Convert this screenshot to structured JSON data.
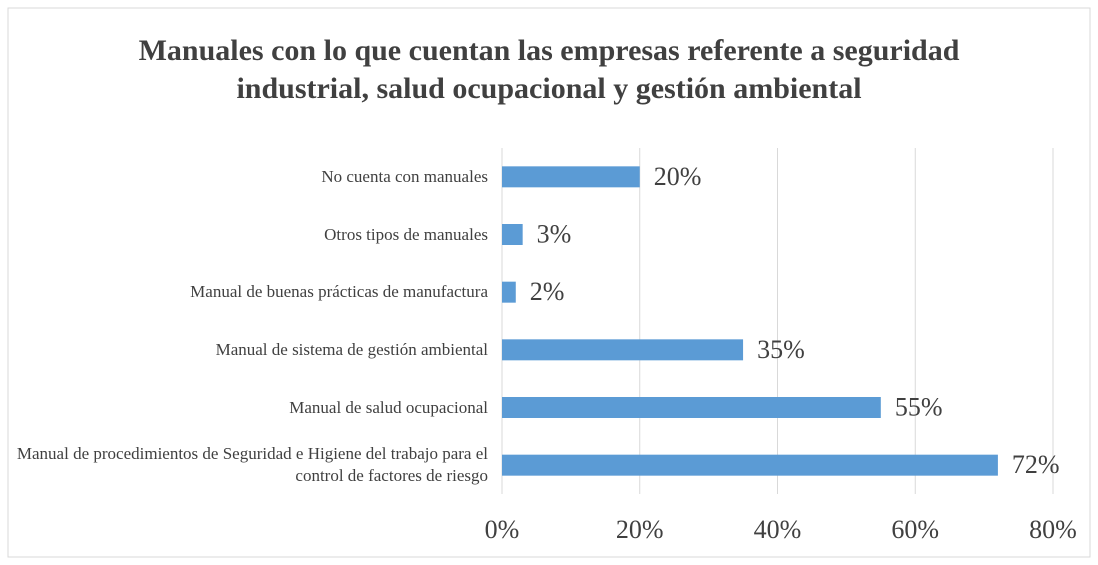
{
  "chart_data": {
    "type": "bar",
    "orientation": "horizontal",
    "title": "Manuales con lo que cuentan las empresas referente a seguridad industrial, salud ocupacional y gestión ambiental",
    "categories": [
      "No cuenta con manuales",
      "Otros tipos de manuales",
      "Manual de buenas prácticas de manufactura",
      "Manual de sistema de gestión ambiental",
      "Manual de salud ocupacional",
      "Manual de procedimientos de Seguridad e Higiene del trabajo para el control de factores de riesgo"
    ],
    "values": [
      20,
      3,
      2,
      35,
      55,
      72
    ],
    "value_labels": [
      "20%",
      "3%",
      "2%",
      "35%",
      "55%",
      "72%"
    ],
    "color": "#5b9bd5",
    "xlim": [
      0,
      80
    ],
    "xticks": [
      {
        "value": 0,
        "label": "0%"
      },
      {
        "value": 20,
        "label": "20%"
      },
      {
        "value": 40,
        "label": "40%"
      },
      {
        "value": 60,
        "label": "60%"
      },
      {
        "value": 80,
        "label": "80%"
      }
    ],
    "grid": true
  }
}
